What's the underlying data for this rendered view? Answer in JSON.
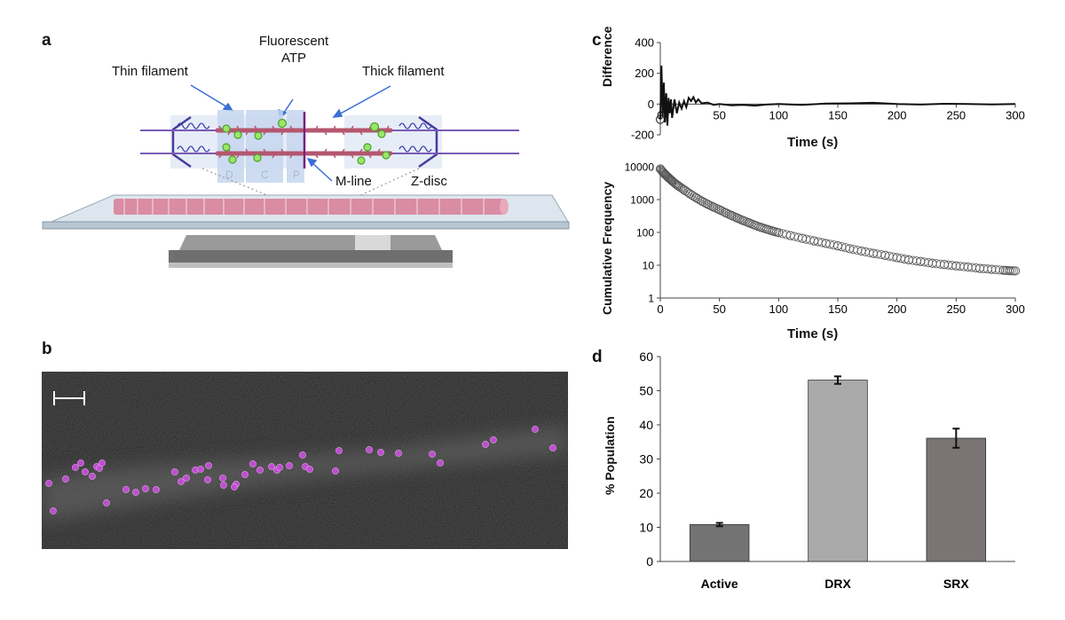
{
  "panels": {
    "a": "a",
    "b": "b",
    "c": "c",
    "d": "d"
  },
  "schematic": {
    "labels": {
      "thin_filament": "Thin filament",
      "fluorescent_1": "Fluorescent",
      "fluorescent_2": "ATP",
      "thick_filament": "Thick filament",
      "zone_d": "D",
      "zone_c": "C",
      "zone_p": "P",
      "m_line": "M-line",
      "z_disc": "Z-disc"
    },
    "colors": {
      "myosin": "#b5566e",
      "actin": "#7a5bb5",
      "atp": "#6fd13a",
      "fiber": "#d98ca3",
      "arrow": "#3b6fd6"
    }
  },
  "micrograph": {
    "description_icon": "scale-bar-icon",
    "spot_color": "#c44fd6",
    "spots": [
      [
        8,
        126
      ],
      [
        13,
        157
      ],
      [
        27,
        121
      ],
      [
        38,
        108
      ],
      [
        44,
        103
      ],
      [
        49,
        113
      ],
      [
        57,
        118
      ],
      [
        62,
        107
      ],
      [
        65,
        109
      ],
      [
        68,
        103
      ],
      [
        73,
        148
      ],
      [
        95,
        133
      ],
      [
        106,
        136
      ],
      [
        117,
        132
      ],
      [
        129,
        133
      ],
      [
        150,
        113
      ],
      [
        157,
        124
      ],
      [
        163,
        120
      ],
      [
        173,
        111
      ],
      [
        179,
        110
      ],
      [
        187,
        122
      ],
      [
        188,
        106
      ],
      [
        204,
        120
      ],
      [
        205,
        128
      ],
      [
        219,
        127
      ],
      [
        217,
        130
      ],
      [
        229,
        116
      ],
      [
        238,
        104
      ],
      [
        246,
        111
      ],
      [
        259,
        107
      ],
      [
        265,
        111
      ],
      [
        268,
        108
      ],
      [
        279,
        106
      ],
      [
        294,
        94
      ],
      [
        297,
        107
      ],
      [
        302,
        110
      ],
      [
        331,
        112
      ],
      [
        335,
        89
      ],
      [
        369,
        88
      ],
      [
        382,
        91
      ],
      [
        402,
        92
      ],
      [
        440,
        93
      ],
      [
        449,
        103
      ],
      [
        500,
        82
      ],
      [
        509,
        77
      ],
      [
        556,
        65
      ],
      [
        576,
        86
      ]
    ]
  },
  "chart_data": [
    {
      "type": "line",
      "panel": "c-top",
      "xlabel": "Time (s)",
      "ylabel": "Difference",
      "xlim": [
        0,
        300
      ],
      "ylim": [
        -200,
        400
      ],
      "xticks": [
        "0",
        "50",
        "100",
        "150",
        "200",
        "250",
        "300"
      ],
      "yticks": [
        "-200",
        "0",
        "200",
        "400"
      ],
      "x": [
        0,
        1,
        2,
        3,
        4,
        5,
        6,
        7,
        8,
        9,
        10,
        12,
        14,
        16,
        18,
        20,
        22,
        24,
        26,
        28,
        30,
        32,
        35,
        40,
        45,
        50,
        60,
        70,
        80,
        90,
        100,
        120,
        140,
        160,
        180,
        200,
        220,
        240,
        260,
        280,
        300
      ],
      "y": [
        -100,
        250,
        -80,
        140,
        -120,
        70,
        -140,
        40,
        -60,
        30,
        -90,
        30,
        -60,
        10,
        -30,
        20,
        -20,
        40,
        20,
        45,
        10,
        30,
        5,
        10,
        -5,
        0,
        -8,
        -5,
        -10,
        -3,
        0,
        -5,
        3,
        5,
        8,
        0,
        -3,
        2,
        0,
        -2,
        1
      ],
      "color": "#111111"
    },
    {
      "type": "scatter",
      "panel": "c-bottom",
      "xlabel": "Time (s)",
      "ylabel": "Cumulative Frequency",
      "xlim": [
        0,
        300
      ],
      "ylim": [
        1,
        10000
      ],
      "yscale": "log",
      "xticks": [
        "0",
        "50",
        "100",
        "150",
        "200",
        "250",
        "300"
      ],
      "yticks": [
        "1",
        "10",
        "100",
        "1000",
        "10000"
      ],
      "x": [
        0,
        2,
        4,
        6,
        8,
        10,
        13,
        16,
        20,
        25,
        30,
        35,
        40,
        45,
        50,
        55,
        60,
        65,
        70,
        75,
        80,
        85,
        90,
        95,
        100,
        110,
        120,
        130,
        140,
        150,
        160,
        170,
        180,
        190,
        200,
        210,
        220,
        230,
        240,
        250,
        260,
        270,
        280,
        290,
        295,
        300
      ],
      "y": [
        8600,
        7000,
        5900,
        5000,
        4300,
        3700,
        3000,
        2500,
        2000,
        1500,
        1150,
        900,
        720,
        590,
        490,
        400,
        330,
        275,
        230,
        195,
        165,
        142,
        125,
        110,
        98,
        80,
        66,
        55,
        46,
        39,
        32,
        27,
        23,
        20,
        17,
        14.5,
        13,
        11.5,
        10.5,
        9.5,
        8.8,
        8,
        7.5,
        7,
        6.8,
        6.7
      ],
      "color": "#555555"
    },
    {
      "type": "bar",
      "panel": "d",
      "xlabel": "",
      "ylabel": "% Population",
      "ylim": [
        0,
        60
      ],
      "yticks": [
        "0",
        "10",
        "20",
        "30",
        "40",
        "50",
        "60"
      ],
      "categories": [
        "Active",
        "DRX",
        "SRX"
      ],
      "values": [
        10.8,
        53.1,
        36.1
      ],
      "errors": [
        0.5,
        1.1,
        2.8
      ],
      "colors": [
        "#737373",
        "#aaaaaa",
        "#7a7574"
      ]
    }
  ]
}
